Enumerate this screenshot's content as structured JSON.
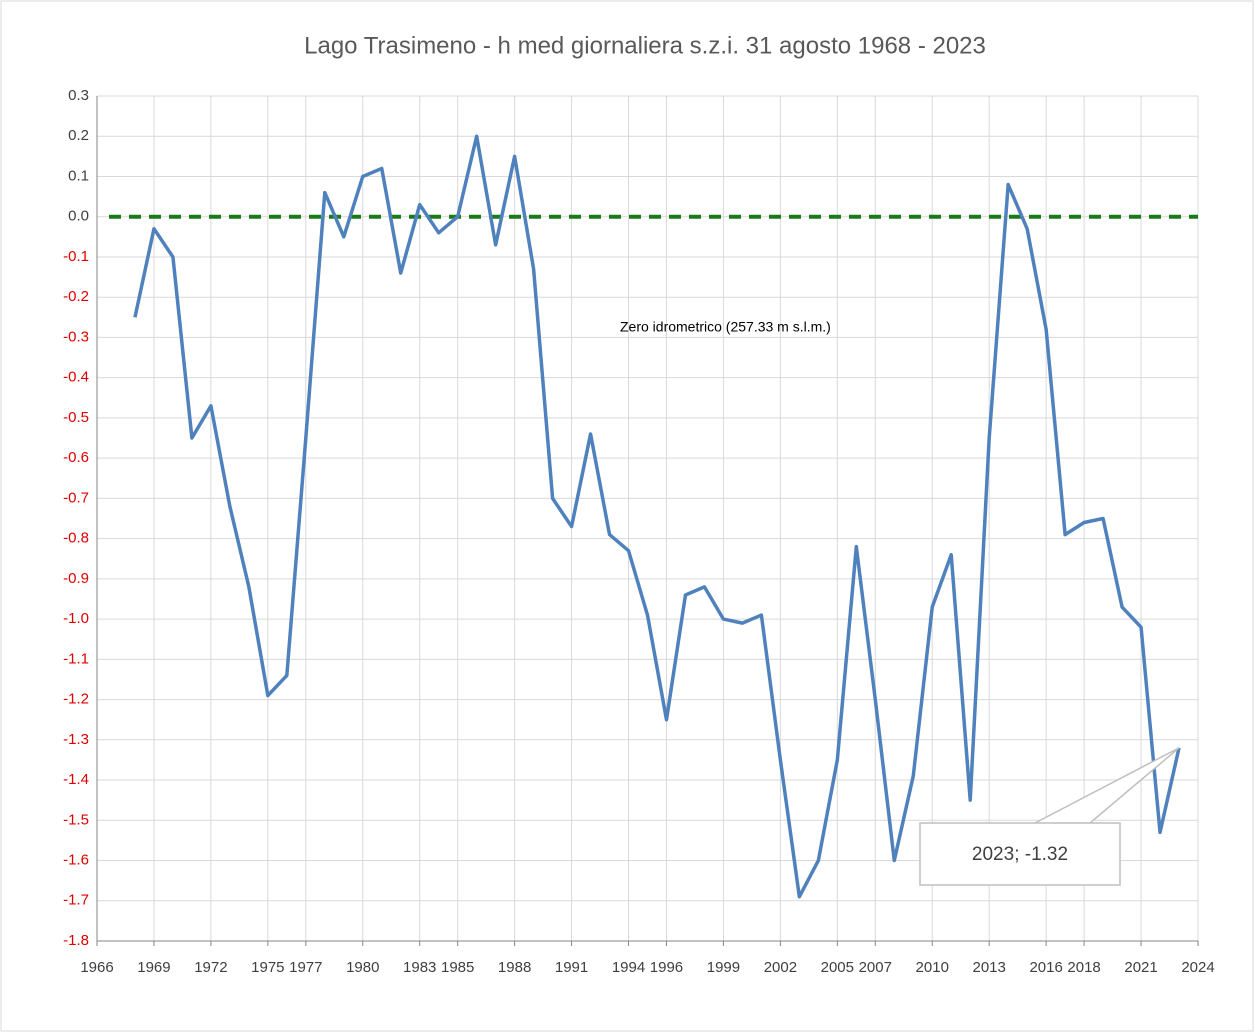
{
  "chart_data": {
    "type": "line",
    "title": "Lago Trasimeno - h med giornaliera s.z.i. 31 agosto 1968 - 2023",
    "x": [
      1968,
      1969,
      1970,
      1971,
      1972,
      1973,
      1974,
      1975,
      1976,
      1977,
      1978,
      1979,
      1980,
      1981,
      1982,
      1983,
      1984,
      1985,
      1986,
      1987,
      1988,
      1989,
      1990,
      1991,
      1992,
      1993,
      1994,
      1995,
      1996,
      1997,
      1998,
      1999,
      2000,
      2001,
      2002,
      2003,
      2004,
      2005,
      2006,
      2007,
      2008,
      2009,
      2010,
      2011,
      2012,
      2013,
      2014,
      2015,
      2016,
      2017,
      2018,
      2019,
      2020,
      2021,
      2022,
      2023
    ],
    "series": [
      {
        "color": "#4f81bd",
        "values": [
          -0.25,
          -0.03,
          -0.1,
          -0.55,
          -0.47,
          -0.72,
          -0.92,
          -1.19,
          -1.14,
          -0.55,
          0.06,
          -0.05,
          0.1,
          0.12,
          -0.14,
          0.03,
          -0.04,
          0.0,
          0.2,
          -0.07,
          0.15,
          -0.13,
          -0.7,
          -0.77,
          -0.54,
          -0.79,
          -0.83,
          -0.99,
          -1.25,
          -0.94,
          -0.92,
          -1.0,
          -1.01,
          -0.99,
          -1.35,
          -1.69,
          -1.6,
          -1.35,
          -0.82,
          -1.2,
          -1.6,
          -1.39,
          -0.97,
          -0.84,
          -1.45,
          -0.55,
          0.08,
          -0.03,
          -0.28,
          -0.79,
          -0.76,
          -0.75,
          -0.97,
          -1.02,
          -1.53,
          -1.32
        ]
      }
    ],
    "reference_line": {
      "value": 0,
      "label": "Zero idrometrico (257.33 m s.l.m.)",
      "color": "#1a7a1a"
    },
    "annotation": {
      "label": "2023; -1.32"
    },
    "xlim": [
      1966,
      2024
    ],
    "xticks": [
      1966,
      1969,
      1972,
      1975,
      1977,
      1980,
      1983,
      1985,
      1988,
      1991,
      1994,
      1996,
      1999,
      2002,
      2005,
      2007,
      2010,
      2013,
      2016,
      2018,
      2021,
      2024
    ],
    "ylim": [
      -1.8,
      0.3
    ],
    "yticks": [
      0.3,
      0.2,
      0.1,
      {
        "value": 0,
        "label": "0.0"
      },
      -0.1,
      -0.2,
      -0.3,
      -0.4,
      -0.5,
      -0.6,
      -0.7,
      -0.8,
      -0.9,
      {
        "value": -1,
        "label": "-1.0"
      },
      -1.1,
      -1.2,
      -1.3,
      -1.4,
      -1.5,
      -1.6,
      -1.7,
      -1.8
    ],
    "negative_tick_color": "#e00000",
    "grid": true
  }
}
